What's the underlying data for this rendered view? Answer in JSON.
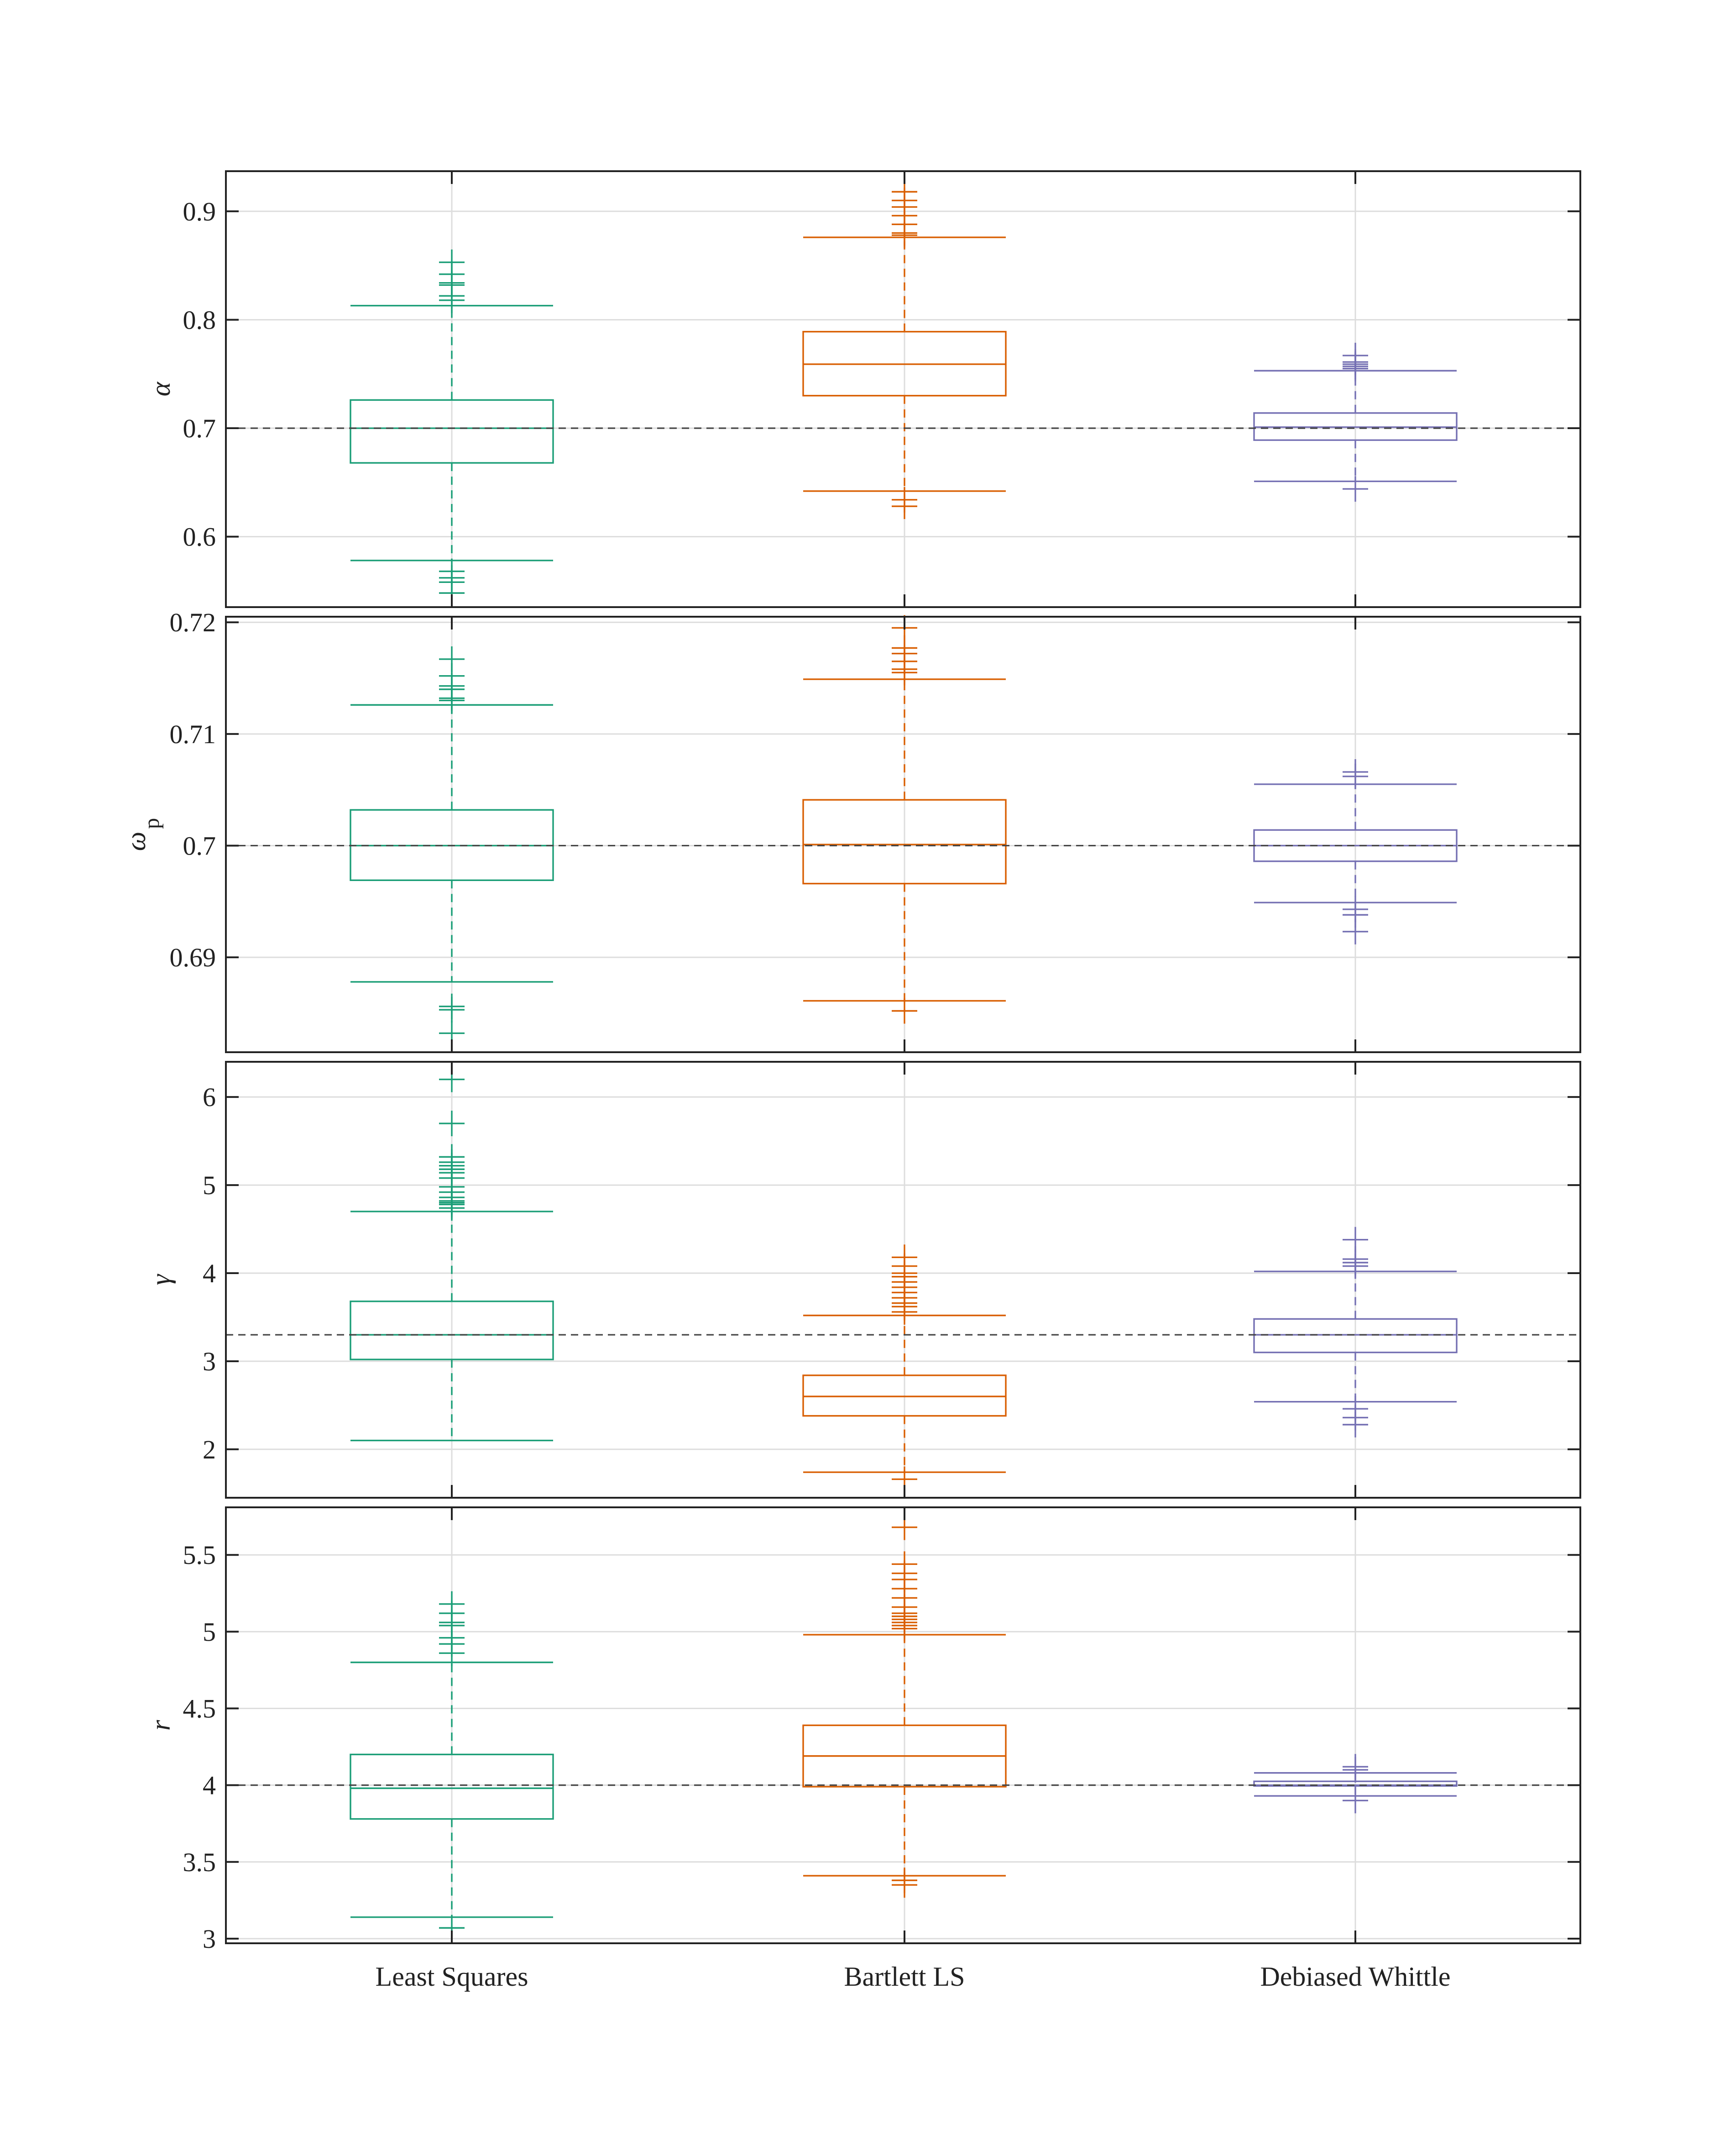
{
  "colors": {
    "least_squares": "#1b9e77",
    "bartlett_ls": "#d95f02",
    "debiased_whittle": "#7570b3",
    "true_line": "#444444",
    "grid": "#dddddd",
    "axis": "#222222"
  },
  "chart_data": [
    {
      "type": "box",
      "ylabel": "α",
      "ylabel_sub": "",
      "true_value": 0.7,
      "ylim": [
        0.535,
        0.937
      ],
      "yticks": [
        0.6,
        0.7,
        0.8,
        0.9
      ],
      "ytick_labels": [
        "0.6",
        "0.7",
        "0.8",
        "0.9"
      ],
      "categories": [
        "Least Squares",
        "Bartlett LS",
        "Debiased Whittle"
      ],
      "series": [
        {
          "name": "Least Squares",
          "q1": 0.668,
          "median": 0.7,
          "q3": 0.726,
          "whisker_low": 0.578,
          "whisker_high": 0.813,
          "outliers": [
            0.548,
            0.558,
            0.562,
            0.568,
            0.818,
            0.822,
            0.832,
            0.834,
            0.842,
            0.853
          ]
        },
        {
          "name": "Bartlett LS",
          "q1": 0.73,
          "median": 0.759,
          "q3": 0.789,
          "whisker_low": 0.642,
          "whisker_high": 0.876,
          "outliers": [
            0.628,
            0.634,
            0.878,
            0.88,
            0.888,
            0.896,
            0.904,
            0.91,
            0.918
          ]
        },
        {
          "name": "Debiased Whittle",
          "q1": 0.689,
          "median": 0.701,
          "q3": 0.714,
          "whisker_low": 0.651,
          "whisker_high": 0.753,
          "outliers": [
            0.644,
            0.755,
            0.757,
            0.759,
            0.761,
            0.767
          ]
        }
      ]
    },
    {
      "type": "box",
      "ylabel": "ω",
      "ylabel_sub": "p",
      "true_value": 0.7,
      "ylim": [
        0.6815,
        0.7205
      ],
      "yticks": [
        0.69,
        0.7,
        0.71,
        0.72
      ],
      "ytick_labels": [
        "0.69",
        "0.7",
        "0.71",
        "0.72"
      ],
      "categories": [
        "Least Squares",
        "Bartlett LS",
        "Debiased Whittle"
      ],
      "series": [
        {
          "name": "Least Squares",
          "q1": 0.6969,
          "median": 0.7,
          "q3": 0.7032,
          "whisker_low": 0.6878,
          "whisker_high": 0.7126,
          "outliers": [
            0.6832,
            0.6853,
            0.6856,
            0.713,
            0.7132,
            0.714,
            0.7143,
            0.7152,
            0.7167
          ]
        },
        {
          "name": "Bartlett LS",
          "q1": 0.6966,
          "median": 0.7001,
          "q3": 0.7041,
          "whisker_low": 0.6861,
          "whisker_high": 0.7149,
          "outliers": [
            0.6852,
            0.7155,
            0.7158,
            0.7165,
            0.7172,
            0.7177,
            0.7195
          ]
        },
        {
          "name": "Debiased Whittle",
          "q1": 0.6986,
          "median": 0.7,
          "q3": 0.7014,
          "whisker_low": 0.6949,
          "whisker_high": 0.7055,
          "outliers": [
            0.6923,
            0.6938,
            0.6943,
            0.7062,
            0.7066
          ]
        }
      ]
    },
    {
      "type": "box",
      "ylabel": "γ",
      "ylabel_sub": "",
      "true_value": 3.3,
      "ylim": [
        1.45,
        6.4
      ],
      "yticks": [
        2,
        3,
        4,
        5,
        6
      ],
      "ytick_labels": [
        "2",
        "3",
        "4",
        "5",
        "6"
      ],
      "categories": [
        "Least Squares",
        "Bartlett LS",
        "Debiased Whittle"
      ],
      "series": [
        {
          "name": "Least Squares",
          "q1": 3.02,
          "median": 3.3,
          "q3": 3.68,
          "whisker_low": 2.1,
          "whisker_high": 4.7,
          "outliers": [
            4.74,
            4.78,
            4.8,
            4.82,
            4.86,
            4.92,
            4.98,
            5.08,
            5.14,
            5.18,
            5.22,
            5.26,
            5.32,
            5.7,
            6.2
          ]
        },
        {
          "name": "Bartlett LS",
          "q1": 2.38,
          "median": 2.6,
          "q3": 2.84,
          "whisker_low": 1.74,
          "whisker_high": 3.52,
          "outliers": [
            1.66,
            3.56,
            3.62,
            3.66,
            3.72,
            3.78,
            3.84,
            3.9,
            3.96,
            4.0,
            4.08,
            4.18
          ]
        },
        {
          "name": "Debiased Whittle",
          "q1": 3.1,
          "median": 3.3,
          "q3": 3.48,
          "whisker_low": 2.54,
          "whisker_high": 4.02,
          "outliers": [
            2.28,
            2.36,
            2.46,
            4.08,
            4.12,
            4.16,
            4.38
          ]
        }
      ]
    },
    {
      "type": "box",
      "ylabel": "r",
      "ylabel_sub": "",
      "true_value": 4.0,
      "ylim": [
        2.97,
        5.81
      ],
      "yticks": [
        3,
        3.5,
        4,
        4.5,
        5,
        5.5
      ],
      "ytick_labels": [
        "3",
        "3.5",
        "4",
        "4.5",
        "5",
        "5.5"
      ],
      "categories": [
        "Least Squares",
        "Bartlett LS",
        "Debiased Whittle"
      ],
      "series": [
        {
          "name": "Least Squares",
          "q1": 3.78,
          "median": 3.98,
          "q3": 4.2,
          "whisker_low": 3.14,
          "whisker_high": 4.8,
          "outliers": [
            3.07,
            4.86,
            4.92,
            4.96,
            5.04,
            5.06,
            5.12,
            5.18
          ]
        },
        {
          "name": "Bartlett LS",
          "q1": 3.99,
          "median": 4.19,
          "q3": 4.39,
          "whisker_low": 3.41,
          "whisker_high": 4.98,
          "outliers": [
            3.35,
            3.38,
            5.02,
            5.04,
            5.06,
            5.08,
            5.1,
            5.12,
            5.16,
            5.22,
            5.28,
            5.34,
            5.38,
            5.44,
            5.68
          ]
        },
        {
          "name": "Debiased Whittle",
          "q1": 3.995,
          "median": 4.0,
          "q3": 4.025,
          "whisker_low": 3.93,
          "whisker_high": 4.08,
          "outliers": [
            3.9,
            4.1,
            4.12
          ]
        }
      ]
    }
  ]
}
